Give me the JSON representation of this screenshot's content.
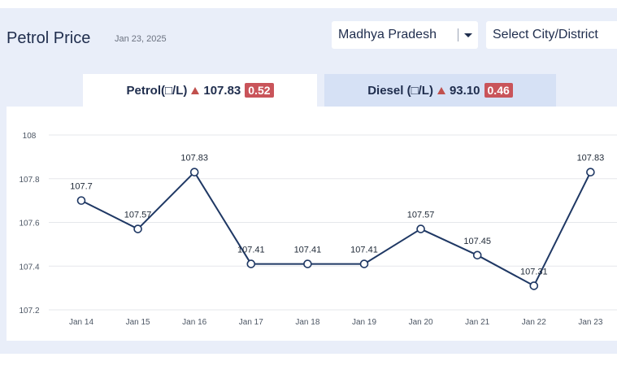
{
  "header": {
    "title": "Petrol Price",
    "date": "Jan 23, 2025",
    "state_select": "Madhya Pradesh",
    "city_select": "Select City/District"
  },
  "tabs": {
    "petrol": {
      "label": "Petrol(□/L)",
      "price": "107.83",
      "change": "0.52"
    },
    "diesel": {
      "label": "Diesel (□/L)",
      "price": "93.10",
      "change": "0.46"
    }
  },
  "colors": {
    "line": "#1f3864",
    "change_badge": "#c9545a",
    "up_arrow": "#c0504d"
  },
  "icons": [
    "triangle-up-icon",
    "chevron-down-icon"
  ],
  "chart_data": {
    "type": "line",
    "title": "",
    "xlabel": "",
    "ylabel": "",
    "categories": [
      "Jan 14",
      "Jan 15",
      "Jan 16",
      "Jan 17",
      "Jan 18",
      "Jan 19",
      "Jan 20",
      "Jan 21",
      "Jan 22",
      "Jan 23"
    ],
    "values": [
      107.7,
      107.57,
      107.83,
      107.41,
      107.41,
      107.41,
      107.57,
      107.45,
      107.31,
      107.83
    ],
    "labels": [
      "107.7",
      "107.57",
      "107.83",
      "107.41",
      "107.41",
      "107.41",
      "107.57",
      "107.45",
      "107.31",
      "107.83"
    ],
    "yticks": [
      108,
      107.8,
      107.6,
      107.4,
      107.2
    ],
    "ytick_labels": [
      "108",
      "107.8",
      "107.6",
      "107.4",
      "107.2"
    ],
    "ylim": [
      107.2,
      108
    ],
    "grid": true
  }
}
